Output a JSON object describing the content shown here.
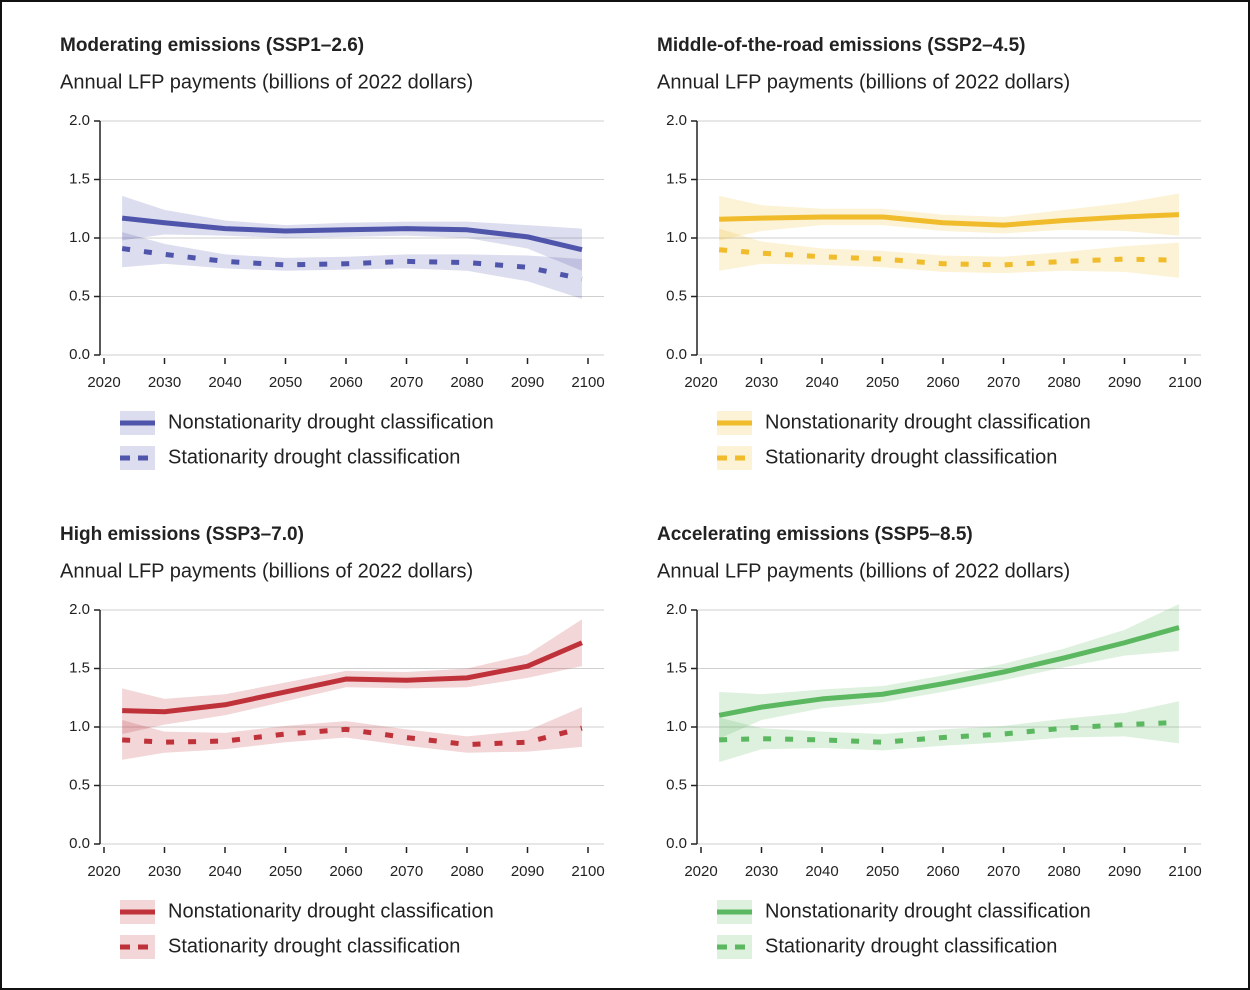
{
  "chart_data": [
    {
      "type": "line",
      "title": "Moderating emissions (SSP1–2.6)",
      "ylabel": "Annual LFP payments (billions of 2022 dollars)",
      "x": [
        2023,
        2030,
        2040,
        2050,
        2060,
        2070,
        2080,
        2090,
        2099
      ],
      "xlim": [
        2020,
        2100
      ],
      "xticks": [
        2020,
        2030,
        2040,
        2050,
        2060,
        2070,
        2080,
        2090,
        2100
      ],
      "ylim": [
        0,
        2
      ],
      "yticks": [
        {
          "value": 0,
          "label": "0.0"
        },
        {
          "value": 0.5,
          "label": "0.5"
        },
        {
          "value": 1,
          "label": "1.0"
        },
        {
          "value": 1.5,
          "label": "1.5"
        },
        {
          "value": 2,
          "label": "2.0"
        }
      ],
      "grid": true,
      "series": [
        {
          "name": "Nonstationarity drought classification",
          "color": "#4f55ab",
          "style": "solid",
          "values": [
            1.17,
            1.13,
            1.08,
            1.06,
            1.07,
            1.08,
            1.07,
            1.01,
            0.9
          ],
          "lower": [
            0.98,
            1.03,
            1.02,
            1.0,
            1.01,
            1.02,
            1.0,
            0.91,
            0.72
          ],
          "upper": [
            1.36,
            1.24,
            1.15,
            1.11,
            1.13,
            1.14,
            1.14,
            1.11,
            1.08
          ]
        },
        {
          "name": "Stationarity drought classification",
          "color": "#4f55ab",
          "style": "dashed",
          "values": [
            0.91,
            0.86,
            0.8,
            0.77,
            0.78,
            0.8,
            0.79,
            0.75,
            0.65
          ],
          "lower": [
            0.75,
            0.78,
            0.74,
            0.72,
            0.73,
            0.74,
            0.72,
            0.63,
            0.48
          ],
          "upper": [
            1.05,
            0.95,
            0.86,
            0.83,
            0.84,
            0.86,
            0.86,
            0.85,
            0.82
          ]
        }
      ]
    },
    {
      "type": "line",
      "title": "Middle-of-the-road emissions (SSP2–4.5)",
      "ylabel": "Annual LFP payments (billions of 2022 dollars)",
      "x": [
        2023,
        2030,
        2040,
        2050,
        2060,
        2070,
        2080,
        2090,
        2099
      ],
      "xlim": [
        2020,
        2100
      ],
      "xticks": [
        2020,
        2030,
        2040,
        2050,
        2060,
        2070,
        2080,
        2090,
        2100
      ],
      "ylim": [
        0,
        2
      ],
      "yticks": [
        {
          "value": 0,
          "label": "0.0"
        },
        {
          "value": 0.5,
          "label": "0.5"
        },
        {
          "value": 1,
          "label": "1.0"
        },
        {
          "value": 1.5,
          "label": "1.5"
        },
        {
          "value": 2,
          "label": "2.0"
        }
      ],
      "grid": true,
      "series": [
        {
          "name": "Nonstationarity drought classification",
          "color": "#f0bc2c",
          "style": "solid",
          "values": [
            1.16,
            1.17,
            1.18,
            1.18,
            1.13,
            1.11,
            1.15,
            1.18,
            1.2
          ],
          "lower": [
            0.98,
            1.06,
            1.11,
            1.11,
            1.06,
            1.04,
            1.07,
            1.06,
            1.02
          ],
          "upper": [
            1.36,
            1.28,
            1.25,
            1.25,
            1.2,
            1.18,
            1.24,
            1.3,
            1.38
          ]
        },
        {
          "name": "Stationarity drought classification",
          "color": "#f0bc2c",
          "style": "dashed",
          "values": [
            0.9,
            0.87,
            0.84,
            0.82,
            0.78,
            0.77,
            0.8,
            0.82,
            0.81
          ],
          "lower": [
            0.72,
            0.78,
            0.77,
            0.75,
            0.71,
            0.7,
            0.72,
            0.71,
            0.66
          ],
          "upper": [
            1.08,
            0.97,
            0.91,
            0.89,
            0.85,
            0.84,
            0.88,
            0.93,
            0.96
          ]
        }
      ]
    },
    {
      "type": "line",
      "title": "High emissions (SSP3–7.0)",
      "ylabel": "Annual LFP payments (billions of 2022 dollars)",
      "x": [
        2023,
        2030,
        2040,
        2050,
        2060,
        2070,
        2080,
        2090,
        2099
      ],
      "xlim": [
        2020,
        2100
      ],
      "xticks": [
        2020,
        2030,
        2040,
        2050,
        2060,
        2070,
        2080,
        2090,
        2100
      ],
      "ylim": [
        0,
        2
      ],
      "yticks": [
        {
          "value": 0,
          "label": "0.0"
        },
        {
          "value": 0.5,
          "label": "0.5"
        },
        {
          "value": 1,
          "label": "1.0"
        },
        {
          "value": 1.5,
          "label": "1.5"
        },
        {
          "value": 2,
          "label": "2.0"
        }
      ],
      "grid": true,
      "series": [
        {
          "name": "Nonstationarity drought classification",
          "color": "#c0323a",
          "style": "solid",
          "values": [
            1.14,
            1.13,
            1.19,
            1.3,
            1.41,
            1.4,
            1.42,
            1.52,
            1.72
          ],
          "lower": [
            0.94,
            1.02,
            1.1,
            1.22,
            1.34,
            1.33,
            1.34,
            1.42,
            1.52
          ],
          "upper": [
            1.33,
            1.24,
            1.28,
            1.38,
            1.48,
            1.47,
            1.5,
            1.62,
            1.92
          ]
        },
        {
          "name": "Stationarity drought classification",
          "color": "#c0323a",
          "style": "dashed",
          "values": [
            0.89,
            0.87,
            0.88,
            0.94,
            0.98,
            0.91,
            0.85,
            0.87,
            0.99
          ],
          "lower": [
            0.72,
            0.78,
            0.81,
            0.87,
            0.91,
            0.84,
            0.78,
            0.79,
            0.83
          ],
          "upper": [
            1.06,
            0.96,
            0.95,
            1.01,
            1.05,
            0.98,
            0.92,
            0.97,
            1.17
          ]
        }
      ]
    },
    {
      "type": "line",
      "title": "Accelerating emissions (SSP5–8.5)",
      "ylabel": "Annual LFP payments (billions of 2022 dollars)",
      "x": [
        2023,
        2030,
        2040,
        2050,
        2060,
        2070,
        2080,
        2090,
        2099
      ],
      "xlim": [
        2020,
        2100
      ],
      "xticks": [
        2020,
        2030,
        2040,
        2050,
        2060,
        2070,
        2080,
        2090,
        2100
      ],
      "ylim": [
        0,
        2
      ],
      "yticks": [
        {
          "value": 0,
          "label": "0.0"
        },
        {
          "value": 0.5,
          "label": "0.5"
        },
        {
          "value": 1,
          "label": "1.0"
        },
        {
          "value": 1.5,
          "label": "1.5"
        },
        {
          "value": 2,
          "label": "2.0"
        }
      ],
      "grid": true,
      "series": [
        {
          "name": "Nonstationarity drought classification",
          "color": "#5bb860",
          "style": "solid",
          "values": [
            1.1,
            1.17,
            1.24,
            1.28,
            1.37,
            1.47,
            1.59,
            1.72,
            1.85
          ],
          "lower": [
            0.9,
            1.06,
            1.16,
            1.21,
            1.3,
            1.4,
            1.51,
            1.61,
            1.65
          ],
          "upper": [
            1.3,
            1.28,
            1.32,
            1.35,
            1.44,
            1.54,
            1.67,
            1.83,
            2.05
          ]
        },
        {
          "name": "Stationarity drought classification",
          "color": "#5bb860",
          "style": "dashed",
          "values": [
            0.89,
            0.9,
            0.89,
            0.87,
            0.91,
            0.94,
            0.99,
            1.02,
            1.04
          ],
          "lower": [
            0.7,
            0.81,
            0.82,
            0.8,
            0.84,
            0.87,
            0.91,
            0.92,
            0.86
          ],
          "upper": [
            1.08,
            0.99,
            0.96,
            0.94,
            0.98,
            1.01,
            1.07,
            1.12,
            1.22
          ]
        }
      ]
    }
  ]
}
